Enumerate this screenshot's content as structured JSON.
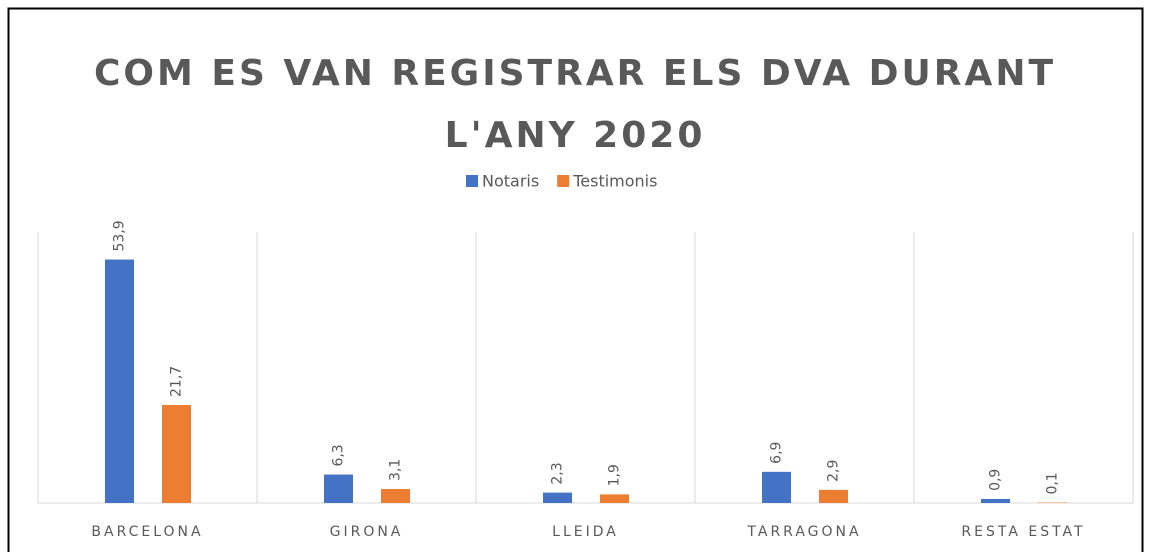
{
  "chart_data": {
    "type": "bar",
    "title": [
      "COM ES VAN REGISTRAR ELS DVA DURANT",
      "L'ANY 2020"
    ],
    "categories": [
      "BARCELONA",
      "GIRONA",
      "LLEIDA",
      "TARRAGONA",
      "RESTA ESTAT"
    ],
    "series": [
      {
        "name": "Notaris",
        "color": "#4472c4",
        "values": [
          53.9,
          6.3,
          2.3,
          6.9,
          0.9
        ],
        "value_labels": [
          "53,9",
          "6,3",
          "2,3",
          "6,9",
          "0,9"
        ]
      },
      {
        "name": "Testimonis",
        "color": "#ed7d31",
        "values": [
          21.7,
          3.1,
          1.9,
          2.9,
          0.1
        ],
        "value_labels": [
          "21,7",
          "3,1",
          "1,9",
          "2,9",
          "0,1"
        ]
      }
    ],
    "ylim": [
      0,
      60
    ],
    "legend": "top"
  }
}
